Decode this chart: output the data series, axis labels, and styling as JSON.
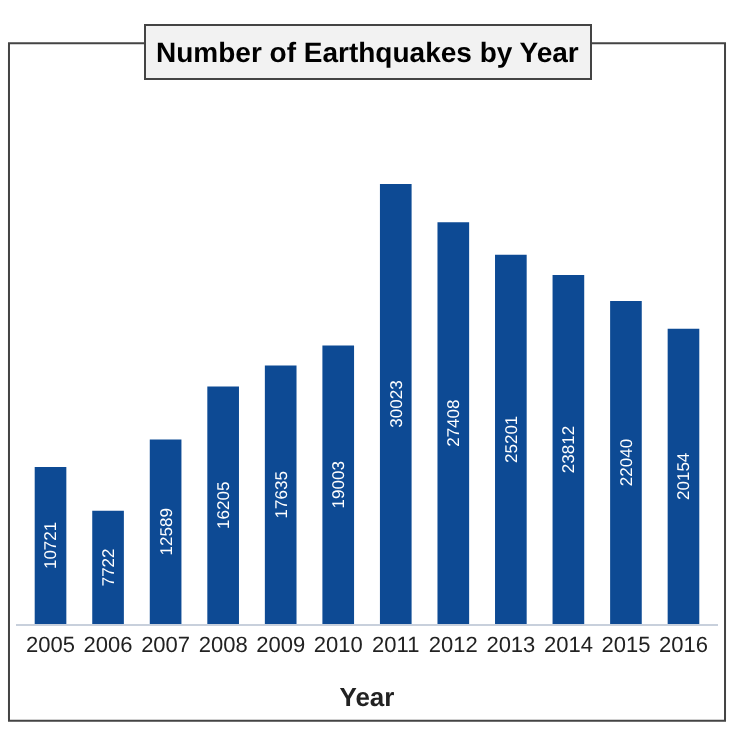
{
  "chart_data": {
    "type": "bar",
    "title": "Number of Earthquakes by Year",
    "xlabel": "Year",
    "categories": [
      "2005",
      "2006",
      "2007",
      "2008",
      "2009",
      "2010",
      "2011",
      "2012",
      "2013",
      "2014",
      "2015",
      "2016"
    ],
    "values": [
      10721,
      7722,
      12589,
      16205,
      17635,
      19003,
      30023,
      27408,
      25201,
      23812,
      22040,
      20154
    ],
    "color": "#0d4a94",
    "data_labels": true
  }
}
